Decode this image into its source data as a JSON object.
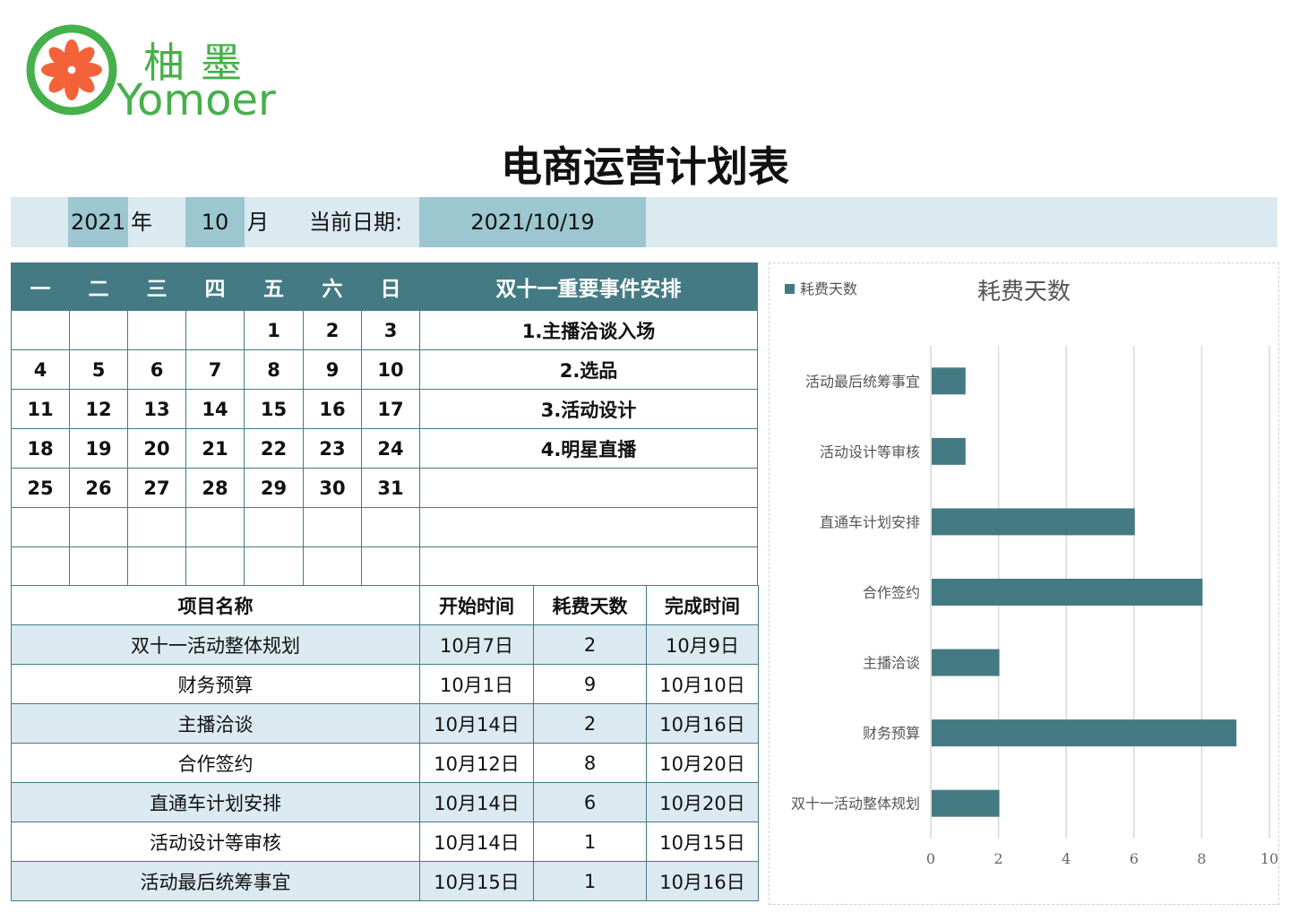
{
  "logo": {
    "cn": "柚墨",
    "en": "Yomoer"
  },
  "title": "电商运营计划表",
  "datebar": {
    "year": "2021",
    "year_label": "年",
    "month": "10",
    "month_label": "月",
    "current_label": "当前日期:",
    "current_date": "2021/10/19"
  },
  "calendar": {
    "weekdays": [
      "一",
      "二",
      "三",
      "四",
      "五",
      "六",
      "日"
    ],
    "events_header": "双十一重要事件安排",
    "weeks": [
      [
        "",
        "",
        "",
        "",
        "1",
        "2",
        "3"
      ],
      [
        "4",
        "5",
        "6",
        "7",
        "8",
        "9",
        "10"
      ],
      [
        "11",
        "12",
        "13",
        "14",
        "15",
        "16",
        "17"
      ],
      [
        "18",
        "19",
        "20",
        "21",
        "22",
        "23",
        "24"
      ],
      [
        "25",
        "26",
        "27",
        "28",
        "29",
        "30",
        "31"
      ],
      [
        "",
        "",
        "",
        "",
        "",
        "",
        ""
      ],
      [
        "",
        "",
        "",
        "",
        "",
        "",
        ""
      ]
    ],
    "events": [
      "1.主播洽谈入场",
      "2.选品",
      "3.活动设计",
      "4.明星直播",
      "",
      "",
      ""
    ]
  },
  "projects": {
    "headers": [
      "项目名称",
      "开始时间",
      "耗费天数",
      "完成时间"
    ],
    "rows": [
      [
        "双十一活动整体规划",
        "10月7日",
        "2",
        "10月9日"
      ],
      [
        "财务预算",
        "10月1日",
        "9",
        "10月10日"
      ],
      [
        "主播洽谈",
        "10月14日",
        "2",
        "10月16日"
      ],
      [
        "合作签约",
        "10月12日",
        "8",
        "10月20日"
      ],
      [
        "直通车计划安排",
        "10月14日",
        "6",
        "10月20日"
      ],
      [
        "活动设计等审核",
        "10月14日",
        "1",
        "10月15日"
      ],
      [
        "活动最后统筹事宜",
        "10月15日",
        "1",
        "10月16日"
      ]
    ]
  },
  "chart_data": {
    "type": "bar",
    "orientation": "horizontal",
    "title": "耗费天数",
    "legend": "top-left",
    "series": [
      {
        "name": "耗费天数",
        "color": "#447a84",
        "values": [
          1,
          1,
          6,
          8,
          2,
          9,
          2
        ]
      }
    ],
    "categories": [
      "活动最后统筹事宜",
      "活动设计等审核",
      "直通车计划安排",
      "合作签约",
      "主播洽谈",
      "财务预算",
      "双十一活动整体规划"
    ],
    "xlim": [
      0,
      10
    ],
    "xticks": [
      "0",
      "2",
      "4",
      "6",
      "8",
      "10"
    ],
    "grid": true
  }
}
